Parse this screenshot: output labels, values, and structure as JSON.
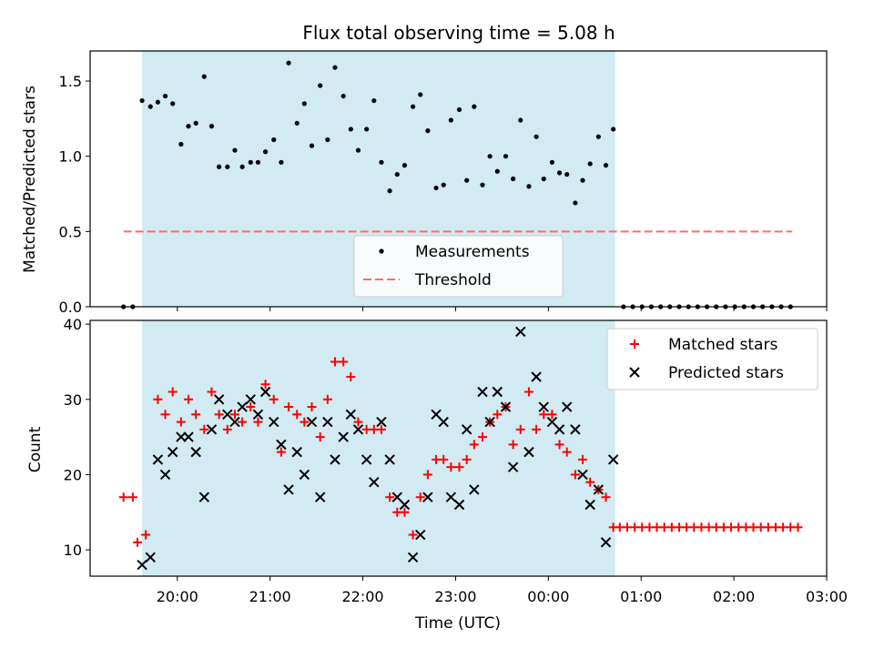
{
  "figure": {
    "title": "Flux total observing time = 5.08 h"
  },
  "chart_data": [
    {
      "type": "scatter",
      "name": "top-panel",
      "ylabel": "Matched/Predicted stars",
      "ylim": [
        0,
        1.7
      ],
      "xlim": [
        19.06,
        27.0
      ],
      "yticks": [
        0.0,
        0.5,
        1.0,
        1.5
      ],
      "ytick_labels": [
        "0.0",
        "0.5",
        "1.0",
        "1.5"
      ],
      "shaded_span": [
        19.62,
        24.72
      ],
      "shade_color": "#add8e6",
      "legend_placement": "lower-center",
      "threshold": {
        "name": "Threshold",
        "value": 0.5,
        "x": [
          19.42,
          26.63
        ],
        "color": "#ff6b6b"
      },
      "series": [
        {
          "name": "Measurements",
          "color": "#000000",
          "x": [
            19.42,
            19.52,
            19.62,
            19.71,
            19.79,
            19.87,
            19.95,
            20.04,
            20.12,
            20.2,
            20.29,
            20.37,
            20.45,
            20.54,
            20.62,
            20.7,
            20.79,
            20.87,
            20.95,
            21.04,
            21.12,
            21.2,
            21.29,
            21.37,
            21.45,
            21.54,
            21.62,
            21.7,
            21.79,
            21.87,
            21.95,
            22.04,
            22.12,
            22.2,
            22.29,
            22.37,
            22.45,
            22.54,
            22.62,
            22.7,
            22.79,
            22.87,
            22.95,
            23.04,
            23.12,
            23.2,
            23.29,
            23.37,
            23.45,
            23.54,
            23.62,
            23.7,
            23.79,
            23.87,
            23.95,
            24.04,
            24.12,
            24.2,
            24.29,
            24.37,
            24.45,
            24.54,
            24.62,
            24.7,
            24.81,
            24.91,
            25.01,
            25.11,
            25.21,
            25.31,
            25.41,
            25.51,
            25.61,
            25.71,
            25.81,
            25.91,
            26.01,
            26.11,
            26.21,
            26.31,
            26.41,
            26.51,
            26.61
          ],
          "y": [
            0.0,
            0.0,
            1.37,
            1.33,
            1.36,
            1.4,
            1.35,
            1.08,
            1.2,
            1.22,
            1.53,
            1.2,
            0.93,
            0.93,
            1.04,
            0.93,
            0.96,
            0.96,
            1.03,
            1.11,
            0.96,
            1.62,
            1.22,
            1.35,
            1.07,
            1.47,
            1.11,
            1.59,
            1.4,
            1.18,
            1.04,
            1.18,
            1.37,
            0.96,
            0.77,
            0.88,
            0.94,
            1.33,
            1.41,
            1.17,
            0.79,
            0.81,
            1.24,
            1.31,
            0.84,
            1.33,
            0.81,
            1.0,
            0.9,
            1.0,
            0.85,
            1.24,
            0.8,
            1.13,
            0.85,
            0.96,
            0.89,
            0.88,
            0.69,
            0.84,
            0.95,
            1.13,
            0.94,
            1.18,
            0.0,
            0.0,
            0.0,
            0.0,
            0.0,
            0.0,
            0.0,
            0.0,
            0.0,
            0.0,
            0.0,
            0.0,
            0.0,
            0.0,
            0.0,
            0.0,
            0.0,
            0.0,
            0.0
          ]
        }
      ]
    },
    {
      "type": "scatter",
      "name": "bottom-panel",
      "xlabel": "Time (UTC)",
      "ylabel": "Count",
      "ylim": [
        6.5,
        40.5
      ],
      "xlim": [
        19.06,
        27.0
      ],
      "yticks": [
        10,
        20,
        30,
        40
      ],
      "ytick_labels": [
        "10",
        "20",
        "30",
        "40"
      ],
      "xticks": [
        20,
        21,
        22,
        23,
        24,
        25,
        26,
        27
      ],
      "xtick_labels": [
        "20:00",
        "21:00",
        "22:00",
        "23:00",
        "00:00",
        "01:00",
        "02:00",
        "03:00"
      ],
      "shaded_span": [
        19.62,
        24.72
      ],
      "shade_color": "#add8e6",
      "legend_placement": "upper-right",
      "series": [
        {
          "name": "Matched stars",
          "marker": "plus",
          "color": "#ff0000",
          "x": [
            19.42,
            19.52,
            19.57,
            19.66,
            19.79,
            19.87,
            19.95,
            20.04,
            20.12,
            20.2,
            20.29,
            20.37,
            20.45,
            20.54,
            20.62,
            20.7,
            20.79,
            20.87,
            20.95,
            21.04,
            21.12,
            21.2,
            21.29,
            21.37,
            21.45,
            21.54,
            21.62,
            21.7,
            21.79,
            21.87,
            21.95,
            22.04,
            22.12,
            22.2,
            22.29,
            22.37,
            22.45,
            22.54,
            22.62,
            22.7,
            22.79,
            22.87,
            22.95,
            23.04,
            23.12,
            23.2,
            23.29,
            23.37,
            23.45,
            23.54,
            23.62,
            23.7,
            23.79,
            23.87,
            23.95,
            24.04,
            24.12,
            24.2,
            24.29,
            24.37,
            24.45,
            24.54,
            24.62,
            24.7,
            24.77,
            24.85,
            24.93,
            25.01,
            25.09,
            25.17,
            25.25,
            25.33,
            25.41,
            25.49,
            25.57,
            25.65,
            25.73,
            25.81,
            25.89,
            25.97,
            26.05,
            26.13,
            26.21,
            26.29,
            26.37,
            26.45,
            26.53,
            26.61,
            26.69
          ],
          "y": [
            17,
            17,
            11,
            12,
            30,
            28,
            31,
            27,
            30,
            28,
            26,
            31,
            28,
            26,
            28,
            27,
            29,
            27,
            32,
            30,
            23,
            29,
            28,
            27,
            29,
            25,
            30,
            35,
            35,
            33,
            27,
            26,
            26,
            26,
            17,
            15,
            15,
            12,
            17,
            20,
            22,
            22,
            21,
            21,
            22,
            24,
            25,
            27,
            28,
            29,
            24,
            26,
            31,
            26,
            28,
            28,
            24,
            23,
            20,
            22,
            19,
            18,
            17,
            13,
            13,
            13,
            13,
            13,
            13,
            13,
            13,
            13,
            13,
            13,
            13,
            13,
            13,
            13,
            13,
            13,
            13,
            13,
            13,
            13,
            13,
            13,
            13,
            13,
            13
          ]
        },
        {
          "name": "Predicted stars",
          "marker": "x",
          "color": "#000000",
          "x": [
            19.62,
            19.71,
            19.79,
            19.87,
            19.95,
            20.04,
            20.12,
            20.2,
            20.29,
            20.37,
            20.45,
            20.54,
            20.62,
            20.7,
            20.79,
            20.87,
            20.95,
            21.04,
            21.12,
            21.2,
            21.29,
            21.37,
            21.45,
            21.54,
            21.62,
            21.7,
            21.79,
            21.87,
            21.95,
            22.04,
            22.12,
            22.2,
            22.29,
            22.37,
            22.45,
            22.54,
            22.62,
            22.7,
            22.79,
            22.87,
            22.95,
            23.04,
            23.12,
            23.2,
            23.29,
            23.37,
            23.45,
            23.54,
            23.62,
            23.7,
            23.79,
            23.87,
            23.95,
            24.04,
            24.12,
            24.2,
            24.29,
            24.37,
            24.45,
            24.54,
            24.62,
            24.7
          ],
          "y": [
            8,
            9,
            22,
            20,
            23,
            25,
            25,
            23,
            17,
            26,
            30,
            28,
            27,
            29,
            30,
            28,
            31,
            27,
            24,
            18,
            23,
            20,
            27,
            17,
            27,
            22,
            25,
            28,
            26,
            22,
            19,
            27,
            22,
            17,
            16,
            9,
            12,
            17,
            28,
            27,
            17,
            16,
            26,
            18,
            31,
            27,
            31,
            29,
            21,
            39,
            23,
            33,
            29,
            27,
            26,
            29,
            26,
            20,
            16,
            18,
            11,
            22
          ],
          "y_note": "ignore"
        }
      ]
    }
  ]
}
